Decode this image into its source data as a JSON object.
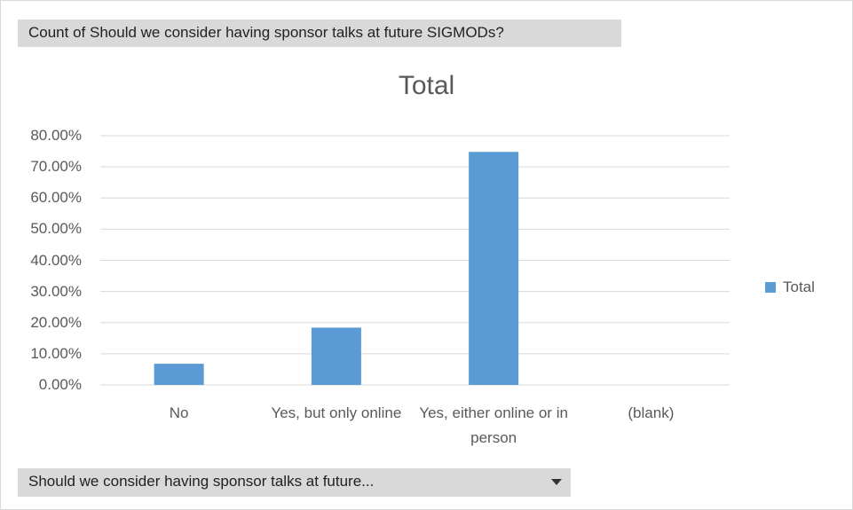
{
  "chart_data": {
    "type": "bar",
    "value_field": "Count of Should we consider having sponsor talks at future SIGMODs?",
    "axis_field": "Should we consider having sponsor talks at future...",
    "title": "Total",
    "categories": [
      "No",
      "Yes, but only online",
      "Yes, either online or in person",
      "(blank)"
    ],
    "series": [
      {
        "name": "Total",
        "color": "#5b9bd5",
        "values": [
          6.8,
          18.4,
          74.8,
          0
        ]
      }
    ],
    "ylim": [
      0,
      80
    ],
    "yticks": [
      {
        "value": 0,
        "label": "0.00%"
      },
      {
        "value": 10,
        "label": "10.00%"
      },
      {
        "value": 20,
        "label": "20.00%"
      },
      {
        "value": 30,
        "label": "30.00%"
      },
      {
        "value": 40,
        "label": "40.00%"
      },
      {
        "value": 50,
        "label": "50.00%"
      },
      {
        "value": 60,
        "label": "60.00%"
      },
      {
        "value": 70,
        "label": "70.00%"
      },
      {
        "value": 80,
        "label": "80.00%"
      }
    ],
    "grid": true,
    "legend": "right"
  }
}
